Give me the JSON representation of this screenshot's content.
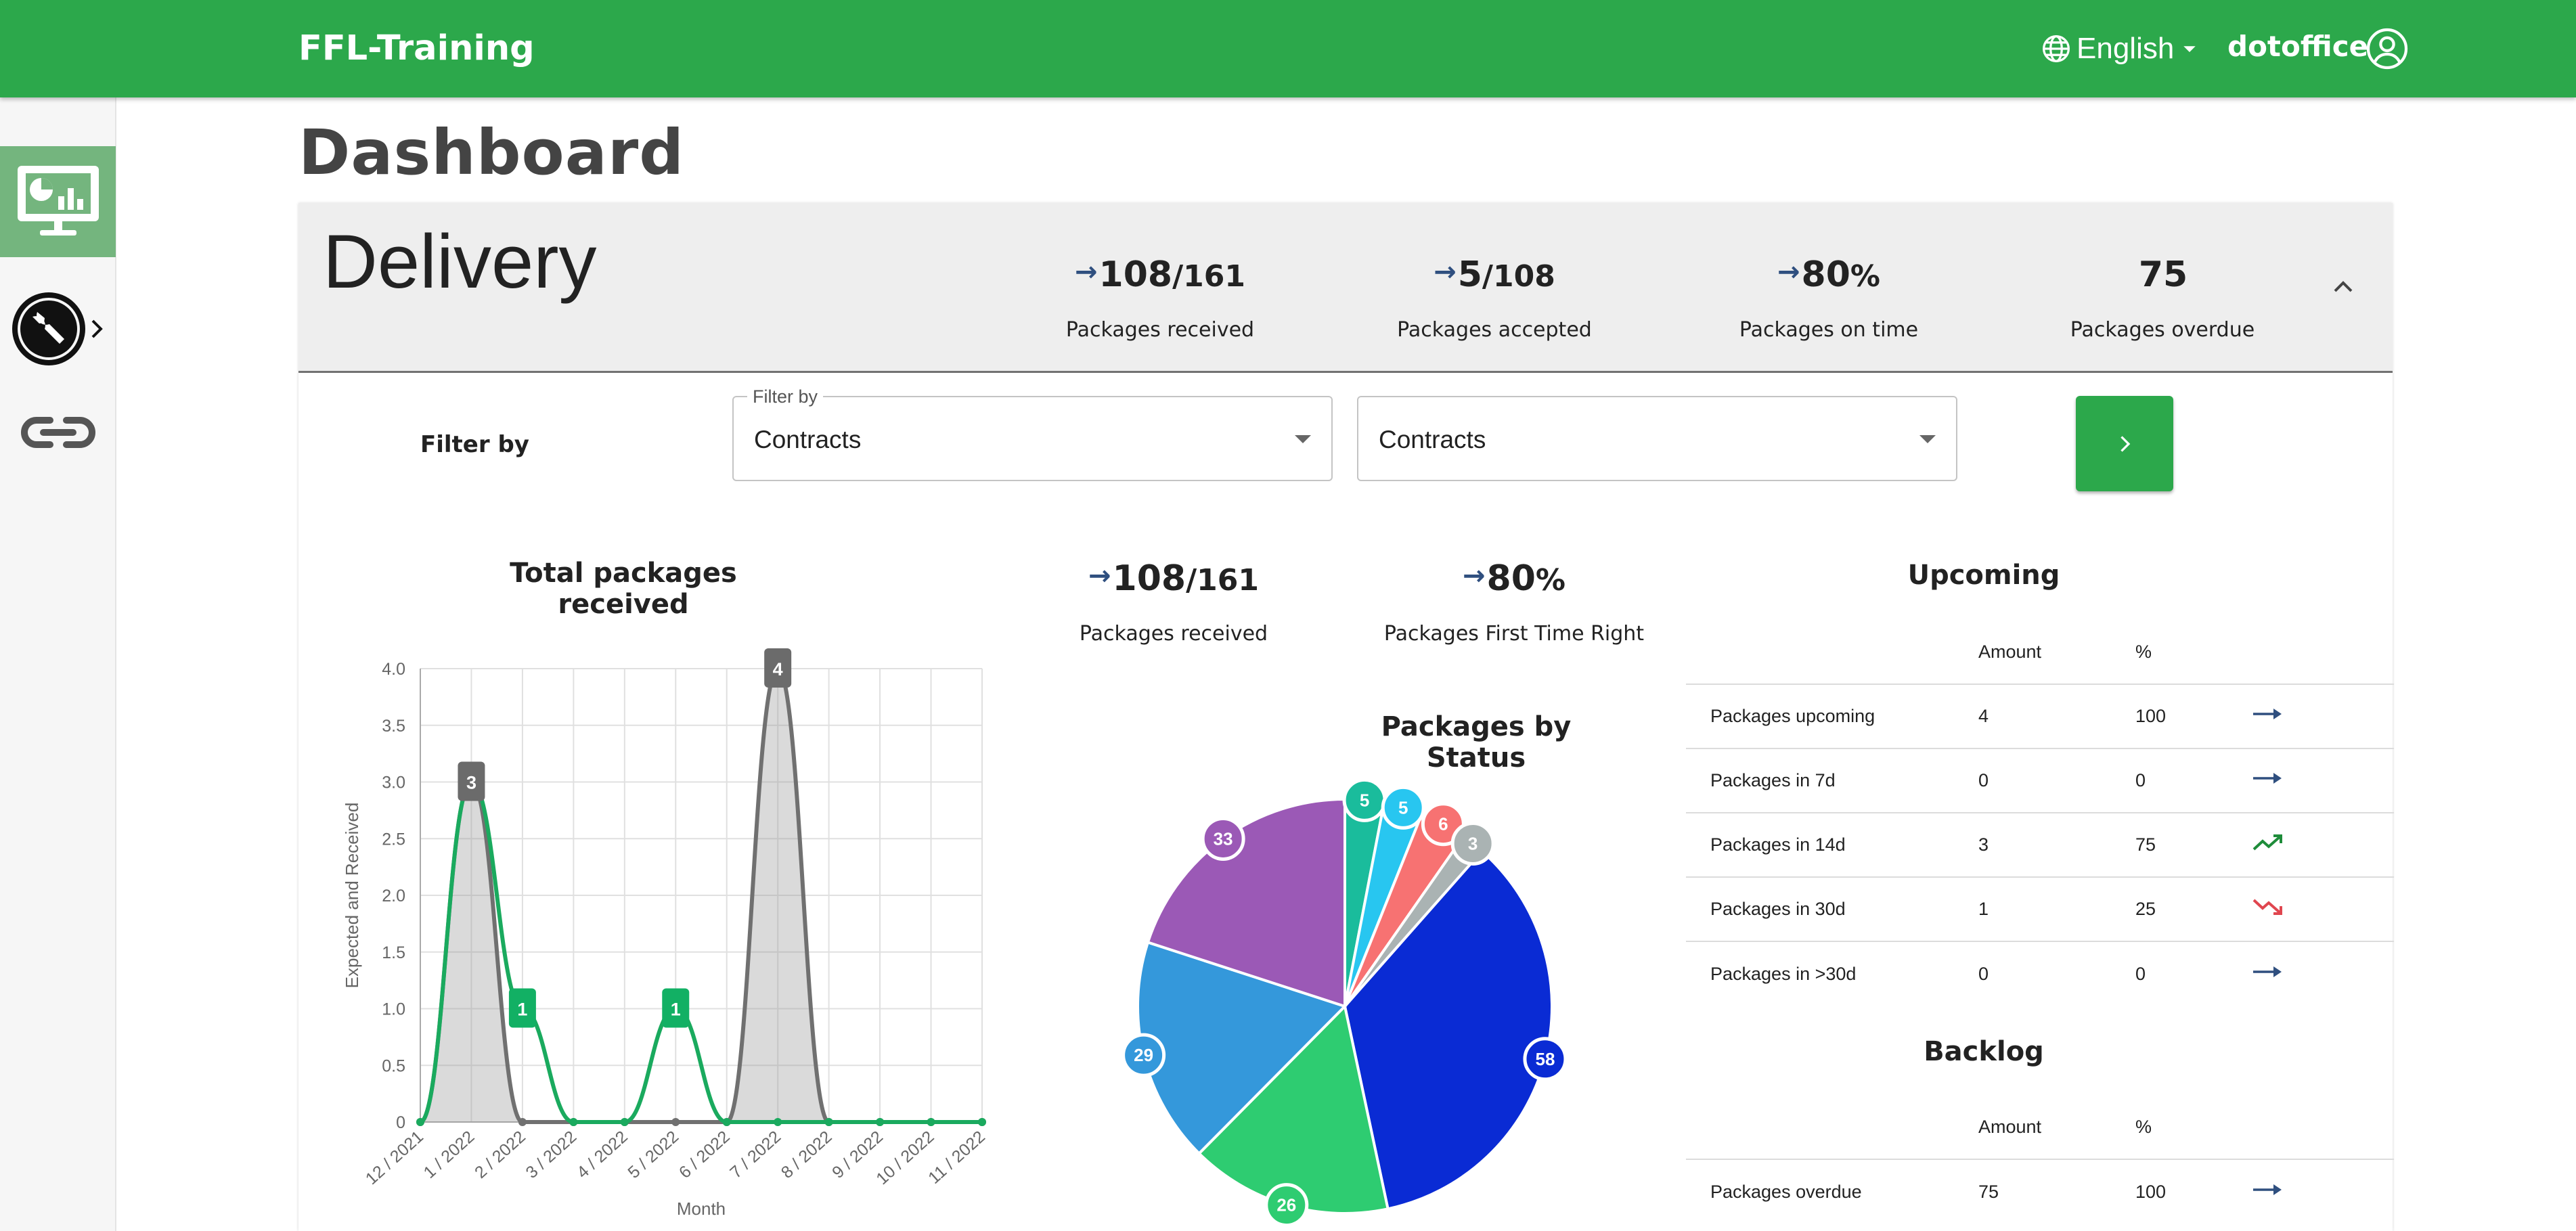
{
  "app": {
    "brand": "FFL-Training",
    "language": "English",
    "user": "dotoffice"
  },
  "page": {
    "title": "Dashboard"
  },
  "delivery": {
    "title": "Delivery",
    "kpis": [
      {
        "arrow": "→",
        "value": "108",
        "sub": "/161",
        "label": "Packages received"
      },
      {
        "arrow": "→",
        "value": "5",
        "sub": "/108",
        "label": "Packages accepted"
      },
      {
        "arrow": "→",
        "value": "80",
        "sub": "%",
        "label": "Packages on time"
      },
      {
        "arrow": "",
        "value": "75",
        "sub": "",
        "label": "Packages overdue"
      }
    ]
  },
  "filter": {
    "label": "Filter by",
    "select1": {
      "legend": "Filter by",
      "value": "Contracts"
    },
    "select2": {
      "value": "Contracts"
    },
    "go_label": "›"
  },
  "summary": [
    {
      "arrow": "→",
      "value": "108",
      "sub": "/161",
      "label": "Packages received"
    },
    {
      "arrow": "→",
      "value": "80",
      "sub": "%",
      "label": "Packages First Time Right"
    }
  ],
  "upcoming": {
    "title": "Upcoming",
    "headers": [
      "Amount",
      "%"
    ],
    "rows": [
      {
        "label": "Packages upcoming",
        "amount": "4",
        "pct": "100",
        "trend": "flat"
      },
      {
        "label": "Packages in 7d",
        "amount": "0",
        "pct": "0",
        "trend": "flat"
      },
      {
        "label": "Packages in 14d",
        "amount": "3",
        "pct": "75",
        "trend": "up"
      },
      {
        "label": "Packages in 30d",
        "amount": "1",
        "pct": "25",
        "trend": "down"
      },
      {
        "label": "Packages in >30d",
        "amount": "0",
        "pct": "0",
        "trend": "flat"
      }
    ]
  },
  "backlog": {
    "title": "Backlog",
    "headers": [
      "Amount",
      "%"
    ],
    "rows": [
      {
        "label": "Packages overdue",
        "amount": "75",
        "pct": "100",
        "trend": "flat"
      }
    ]
  },
  "colors": {
    "primary": "#2ca84b",
    "trend_flat": "#2f4f7f",
    "trend_up": "#1e8c3a",
    "trend_down": "#e0464f"
  },
  "chart_data": [
    {
      "type": "area",
      "title": "Total packages received",
      "xlabel": "Month",
      "ylabel": "Expected and Received",
      "categories": [
        "12 / 2021",
        "1 / 2022",
        "2 / 2022",
        "3 / 2022",
        "4 / 2022",
        "5 / 2022",
        "6 / 2022",
        "7 / 2022",
        "8 / 2022",
        "9 / 2022",
        "10 / 2022",
        "11 / 2022"
      ],
      "ylim": [
        0,
        4
      ],
      "yticks": [
        "0",
        "0.5",
        "1.0",
        "1.5",
        "2.0",
        "2.5",
        "3.0",
        "3.5",
        "4.0"
      ],
      "grid": true,
      "series": [
        {
          "values": [
            0,
            3,
            0,
            0,
            0,
            0,
            0,
            4,
            0,
            0,
            0,
            0
          ],
          "color": "#707070",
          "fill": "rgba(150,150,150,0.35)"
        },
        {
          "values": [
            0,
            3,
            1,
            0,
            0,
            1,
            0,
            0,
            0,
            0,
            0,
            0
          ],
          "color": "#1aaa5e",
          "fill": "none"
        }
      ],
      "labels": [
        {
          "index": 1,
          "value": 3,
          "text": "3",
          "color": "#6b6b6b"
        },
        {
          "index": 2,
          "value": 1,
          "text": "1",
          "color": "#12b064"
        },
        {
          "index": 5,
          "value": 1,
          "text": "1",
          "color": "#12b064"
        },
        {
          "index": 7,
          "value": 4,
          "text": "4",
          "color": "#6b6b6b"
        }
      ]
    },
    {
      "type": "pie",
      "title": "Packages by Status",
      "slices": [
        {
          "value": 5,
          "color": "#1abc9c"
        },
        {
          "value": 5,
          "color": "#28c6f0"
        },
        {
          "value": 6,
          "color": "#f77272"
        },
        {
          "value": 3,
          "color": "#aab3b3"
        },
        {
          "value": 58,
          "color": "#0a2bd4"
        },
        {
          "value": 26,
          "color": "#2ecc71"
        },
        {
          "value": 29,
          "color": "#3498db"
        },
        {
          "value": 33,
          "color": "#9b59b6"
        }
      ]
    }
  ]
}
